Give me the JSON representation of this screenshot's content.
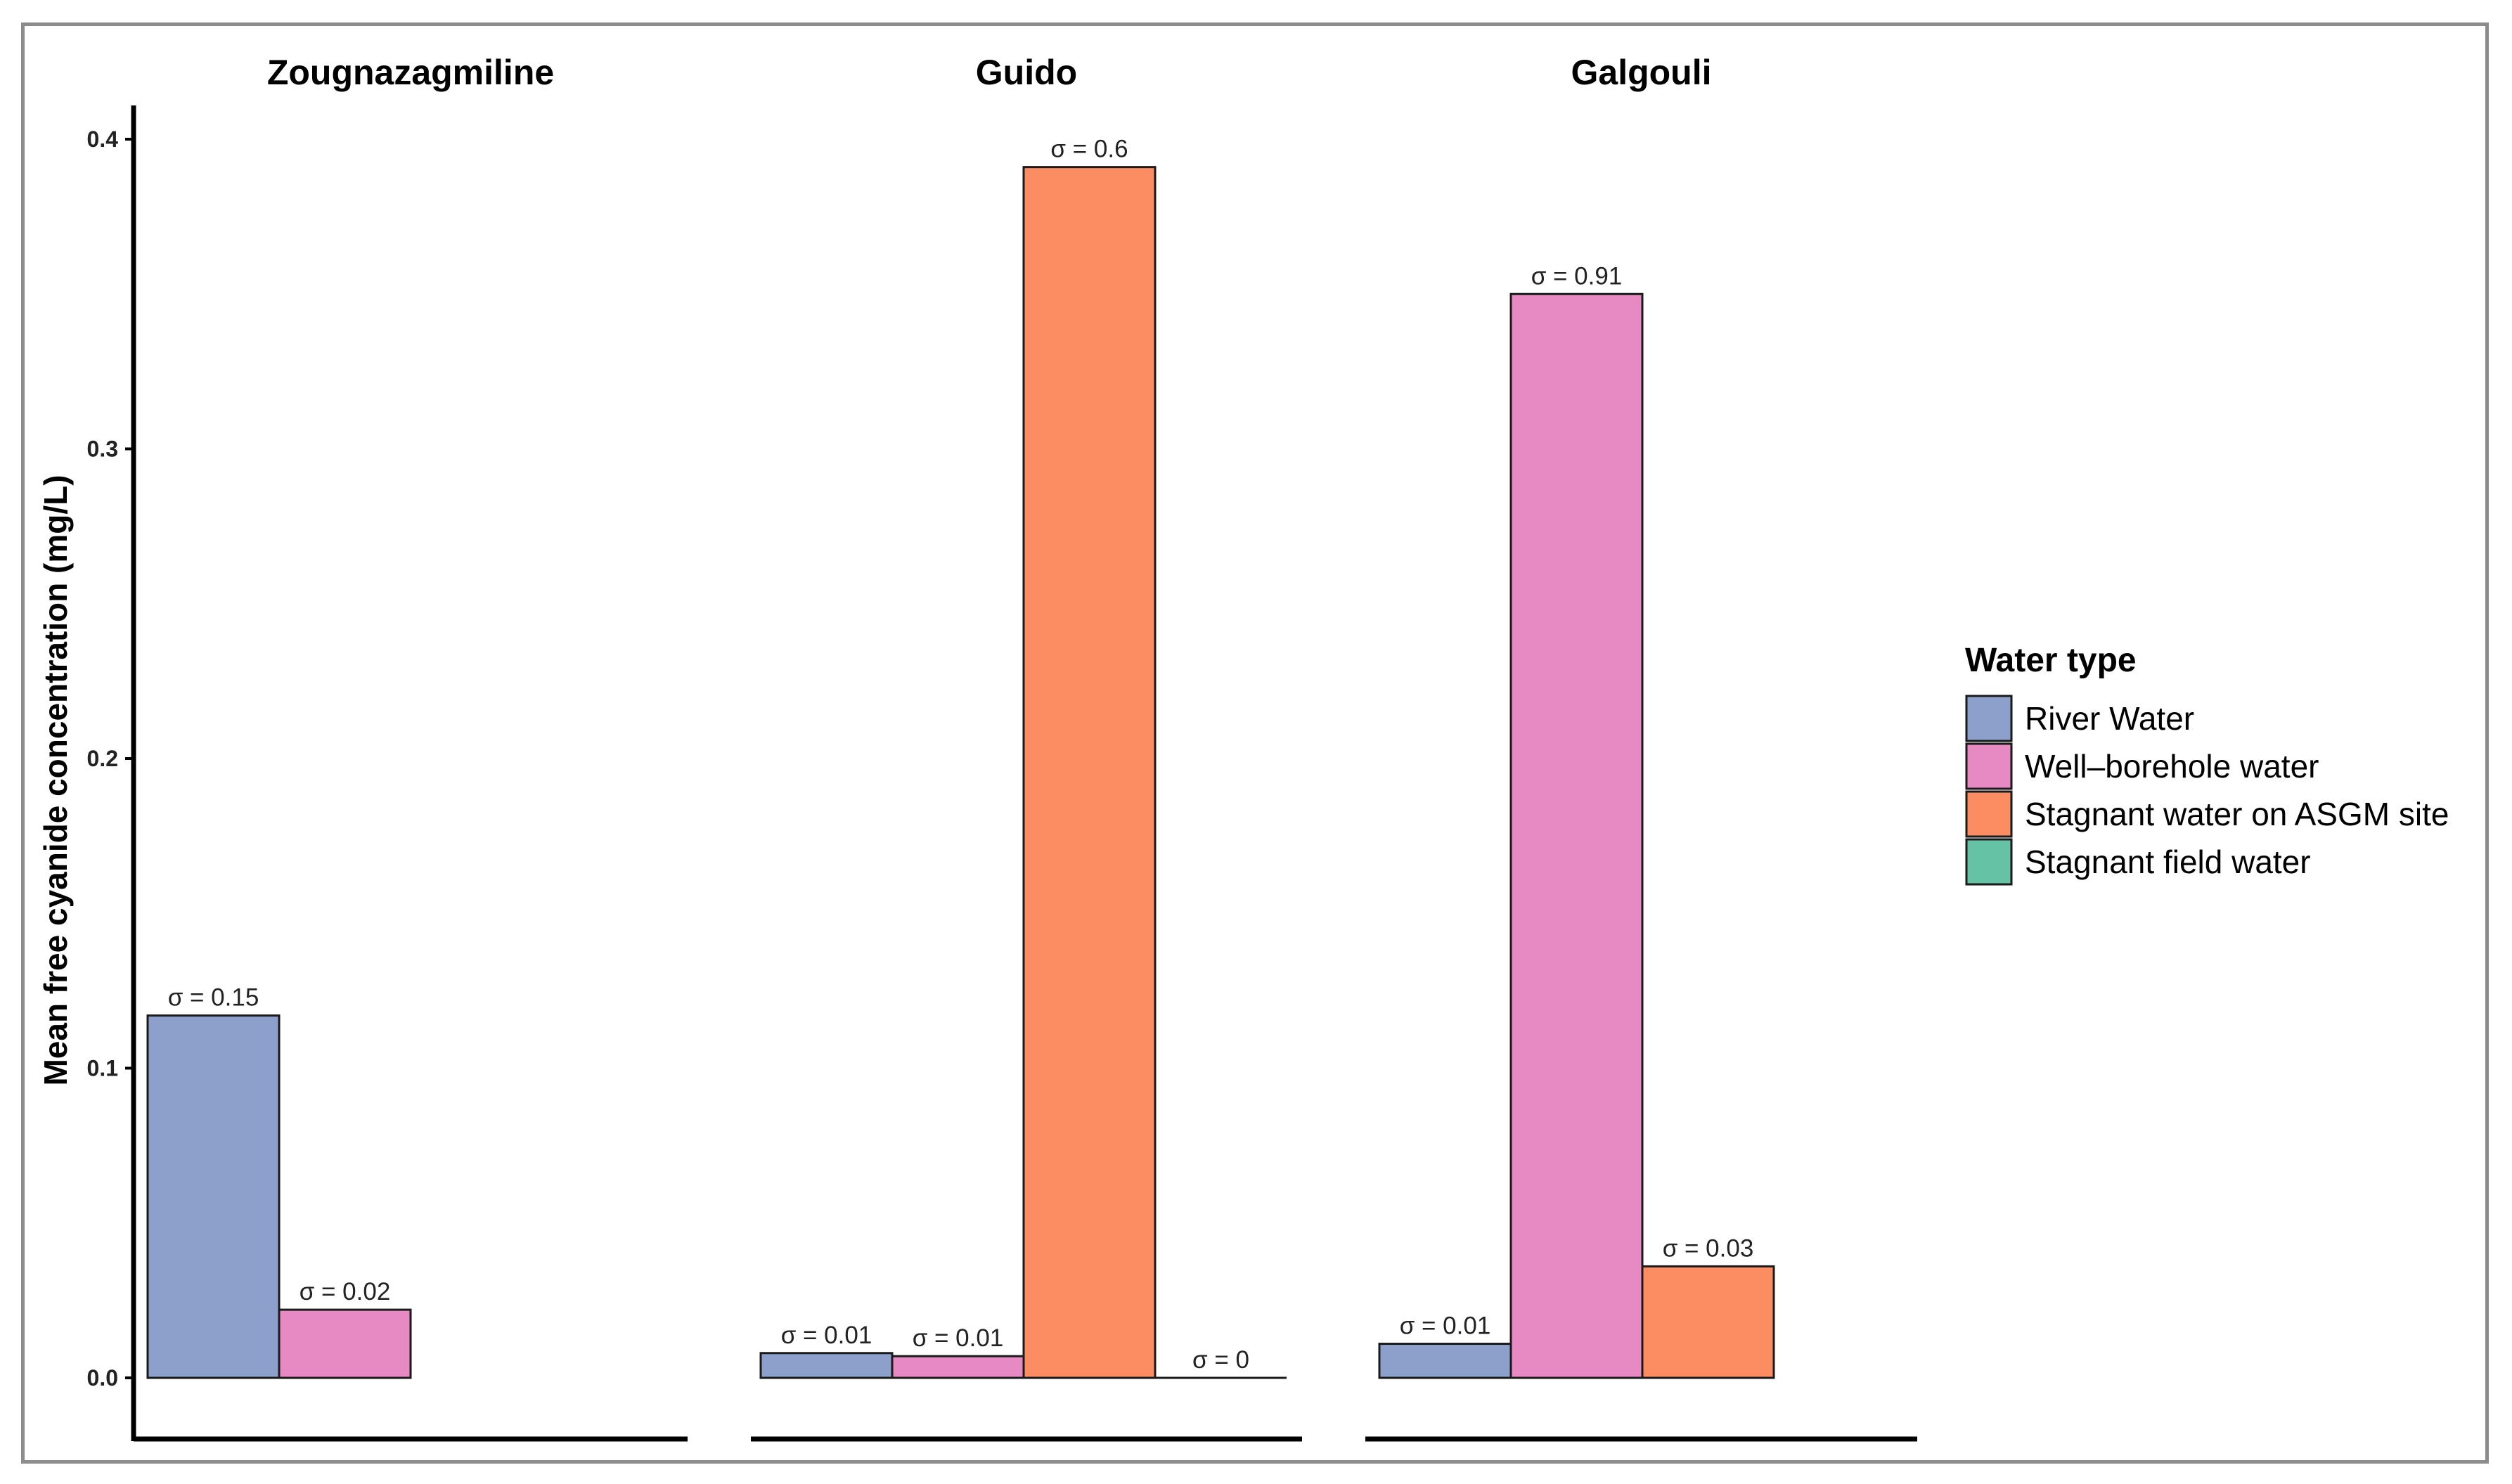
{
  "chart_data": {
    "type": "bar",
    "ylabel": "Mean free cyanide concentration  (mg/L)",
    "ylim": [
      0,
      0.4
    ],
    "yticks": [
      "0.0",
      "0.1",
      "0.2",
      "0.3",
      "0.4"
    ],
    "grid": false,
    "legend_position": "right",
    "legend_title": "Water type",
    "series": [
      {
        "name": "River Water",
        "color": "#8da0cb"
      },
      {
        "name": "Well–borehole water",
        "color": "#e78ac3"
      },
      {
        "name": "Stagnant water on ASGM site",
        "color": "#fc8d62"
      },
      {
        "name": "Stagnant field water",
        "color": "#66c2a5"
      }
    ],
    "panels": [
      {
        "title": "Zougnazagmiline",
        "bars": [
          {
            "series": 0,
            "value": 0.117,
            "label": "σ = 0.15"
          },
          {
            "series": 1,
            "value": 0.022,
            "label": "σ = 0.02"
          }
        ]
      },
      {
        "title": "Guido",
        "bars": [
          {
            "series": 0,
            "value": 0.008,
            "label": "σ = 0.01"
          },
          {
            "series": 1,
            "value": 0.007,
            "label": "σ = 0.01"
          },
          {
            "series": 2,
            "value": 0.391,
            "label": "σ = 0.6"
          },
          {
            "series": 3,
            "value": 0.0,
            "label": "σ = 0"
          }
        ]
      },
      {
        "title": "Galgouli",
        "bars": [
          {
            "series": 0,
            "value": 0.011,
            "label": "σ = 0.01"
          },
          {
            "series": 1,
            "value": 0.35,
            "label": "σ = 0.91"
          },
          {
            "series": 2,
            "value": 0.036,
            "label": "σ = 0.03"
          }
        ]
      }
    ]
  }
}
